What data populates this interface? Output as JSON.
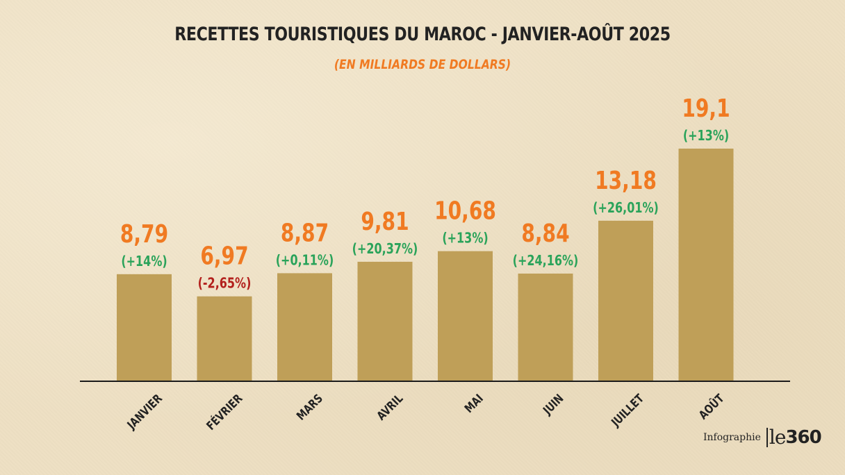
{
  "title": "RECETTES TOURISTIQUES DU MAROC - JANVIER-AOÛT 2025",
  "subtitle": "(EN MILLIARDS DE DOLLARS)",
  "credit": {
    "label": "Infographie",
    "logo_le": "le",
    "logo_num": "360"
  },
  "colors": {
    "bar": "#bf9f58",
    "value": "#f07a22",
    "positive": "#2aa35a",
    "negative": "#b3211d",
    "axis": "#1a1a1a",
    "category": "#222222"
  },
  "chart_data": {
    "type": "bar",
    "title": "RECETTES TOURISTIQUES DU MAROC - JANVIER-AOÛT 2025",
    "subtitle": "(EN MILLIARDS DE DOLLARS)",
    "categories": [
      "JANVIER",
      "FÉVRIER",
      "MARS",
      "AVRIL",
      "MAI",
      "JUIN",
      "JUILLET",
      "AOÛT"
    ],
    "values": [
      8.79,
      6.97,
      8.87,
      9.81,
      10.68,
      8.84,
      13.18,
      19.1
    ],
    "value_labels": [
      "8,79",
      "6,97",
      "8,87",
      "9,81",
      "10,68",
      "8,84",
      "13,18",
      "19,1"
    ],
    "change_labels": [
      "(+14%)",
      "(-2,65%)",
      "(+0,11%)",
      "(+20,37%)",
      "(+13%)",
      "(+24,16%)",
      "(+26,01%)",
      "(+13%)"
    ],
    "change_positive": [
      true,
      false,
      true,
      true,
      true,
      true,
      true,
      true
    ],
    "ylim": [
      0,
      19.1
    ],
    "grid": false,
    "legend": "none"
  }
}
